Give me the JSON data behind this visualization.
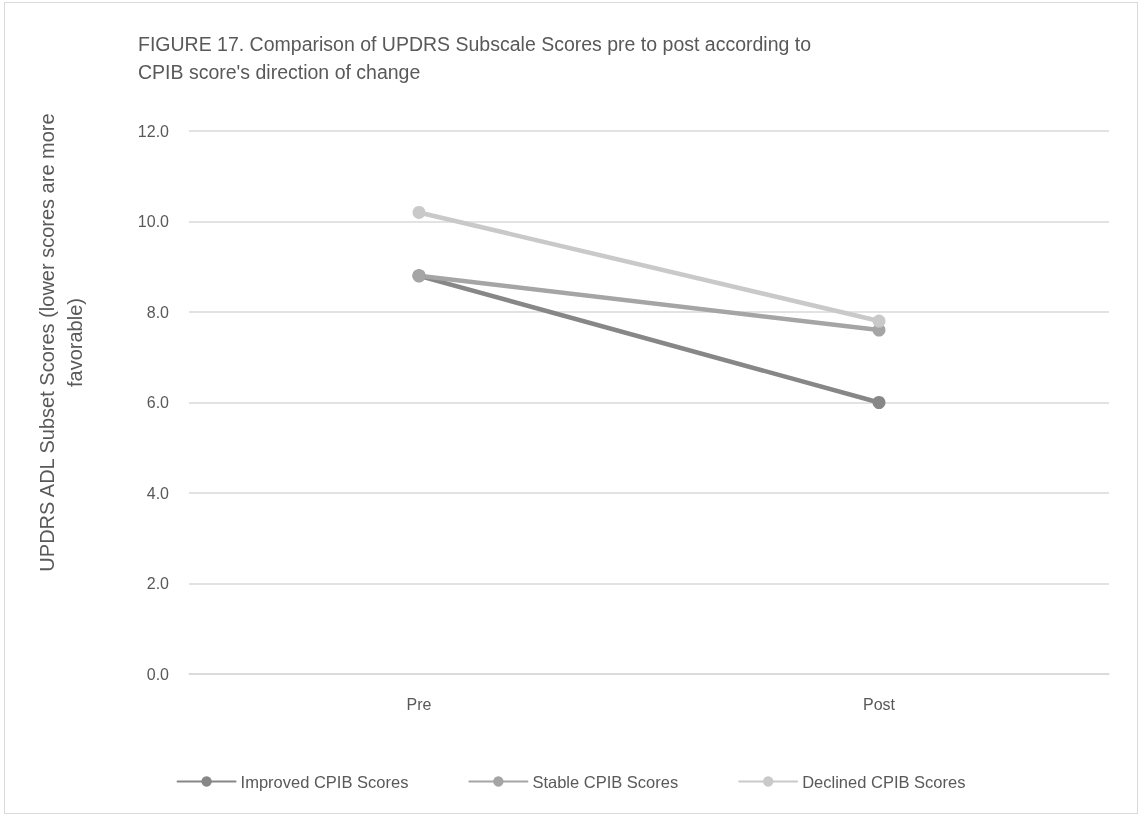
{
  "chart_data": {
    "type": "line",
    "title": "FIGURE 17. Comparison of UPDRS Subscale Scores pre to post according to CPIB score's direction of change",
    "ylabel": "UPDRS ADL Subset Scores (lower scores are more favorable)",
    "categories": [
      "Pre",
      "Post"
    ],
    "series": [
      {
        "name": "Improved CPIB Scores",
        "color": "#878787",
        "values": [
          8.8,
          6.0
        ]
      },
      {
        "name": "Stable CPIB Scores",
        "color": "#a5a5a5",
        "values": [
          8.8,
          7.6
        ]
      },
      {
        "name": "Declined CPIB Scores",
        "color": "#c9c9c9",
        "values": [
          10.2,
          7.8
        ]
      }
    ],
    "ylim": [
      0,
      12
    ],
    "yticks": [
      {
        "value": 0,
        "label": "0.0"
      },
      {
        "value": 2,
        "label": "2.0"
      },
      {
        "value": 4,
        "label": "4.0"
      },
      {
        "value": 6,
        "label": "6.0"
      },
      {
        "value": 8,
        "label": "8.0"
      },
      {
        "value": 10,
        "label": "10.0"
      },
      {
        "value": 12,
        "label": "12.0"
      }
    ],
    "grid": "y",
    "legend": "bottom",
    "marker": "circle",
    "line_style": "solid"
  }
}
